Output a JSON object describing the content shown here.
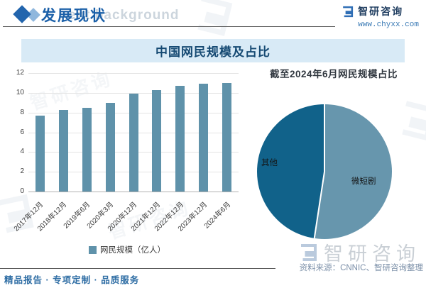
{
  "header": {
    "section_title": "发展现状",
    "background_watermark": "ent background",
    "brand": {
      "name": "智研咨询",
      "url": "www.chyxx.com"
    }
  },
  "banner": {
    "title": "中国网民规模及占比"
  },
  "chart_data": [
    {
      "type": "bar",
      "title": "中国网民规模及占比",
      "categories": [
        "2017年12月",
        "2018年12月",
        "2019年6月",
        "2020年3月",
        "2020年12月",
        "2021年12月",
        "2022年12月",
        "2023年12月",
        "2024年6月"
      ],
      "values": [
        7.7,
        8.3,
        8.5,
        9.0,
        9.9,
        10.3,
        10.7,
        10.9,
        11.0
      ],
      "legend": "网民规模（亿人）",
      "xlabel": "",
      "ylabel": "",
      "ylim": [
        0,
        12
      ],
      "ytick_step": 2,
      "grid": true,
      "legend_position": "bottom",
      "bar_color": "#5f92aa"
    },
    {
      "type": "pie",
      "title": "截至2024年6月网民规模占比",
      "slices": [
        {
          "label": "微短剧",
          "value": 52.4,
          "color": "#6796ad"
        },
        {
          "label": "其他",
          "value": 47.6,
          "color": "#11628a"
        }
      ],
      "start_angle_deg": 0,
      "direction": "clockwise",
      "divider_color": "#ffffff"
    }
  ],
  "footer": {
    "tagline": "精品报告 · 专项定制 · 品质服务",
    "source": "资料来源：CNNIC、智研咨询整理",
    "brand_watermark": "智研咨询"
  },
  "colors": {
    "accent_blue": "#1a5fa8",
    "banner_bg": "#d8eaf6",
    "banner_text": "#164a73",
    "bar": "#5f92aa",
    "pie_dark": "#11628a",
    "pie_light": "#6796ad",
    "footer_tagline": "#2e6da4",
    "source_text": "#7b8fa8"
  }
}
